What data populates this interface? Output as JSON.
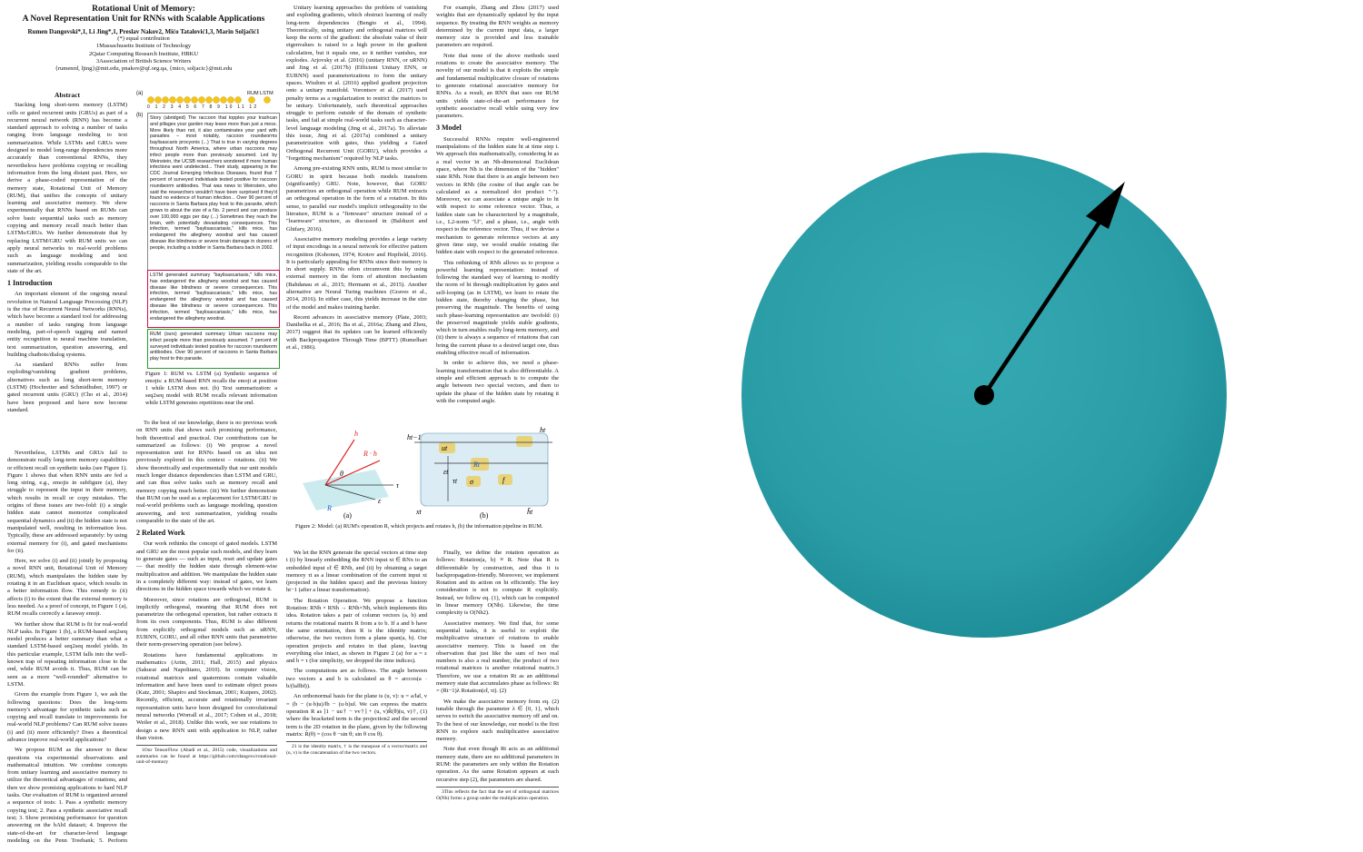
{
  "paper": {
    "title": [
      "Rotational Unit of Memory:",
      "A Novel Representation Unit for RNNs with Scalable Applications"
    ],
    "authors": "Rumen Dangovski*,1, Li Jing*,1, Preslav Nakov2, Mićo Tatalović1,3, Marin Soljačić1",
    "affiliations": [
      "(*) equal contribution",
      "1Massachusetts Institute of Technology",
      "2Qatar Computing Research Institute, HBKU",
      "3Association of British Science Writers",
      "{rumenrd, ljing}@mit.edu, pnakov@qf.org.qa, {mico, soljacic}@mit.edu"
    ],
    "segments": [
      [
        {
          "type": "heading4",
          "text": "Abstract"
        },
        {
          "type": "para",
          "text": "Stacking long short-term memory (LSTM) cells or gated recurrent units (GRUs) as part of a recurrent neural network (RNN) has become a standard approach to solving a number of tasks ranging from language modeling to text summarization. While LSTMs and GRUs were designed to model long-range dependencies more accurately than conventional RNNs, they nevertheless have problems copying or recalling information from the long distant past. Here, we derive a phase-coded representation of the memory state, Rotational Unit of Memory (RUM), that unifies the concepts of unitary learning and associative memory. We show experimentally that RNNs based on RUMs can solve basic sequential tasks such as memory copying and memory recall much better than LSTMs/GRUs. We further demonstrate that by replacing LSTM/GRU with RUM units we can apply neural networks to real-world problems such as language modeling and text summarization, yielding results comparable to the state of the art."
        },
        {
          "type": "heading",
          "text": "1 Introduction"
        },
        {
          "type": "para",
          "text": "An important element of the ongoing neural revolution in Natural Language Processing (NLP) is the rise of Recurrent Neural Networks (RNNs), which have become a standard tool for addressing a number of tasks ranging from language modeling, part-of-speech tagging and named entity recognition to neural machine translation, text summarization, question answering, and building chatbots/dialog systems."
        },
        {
          "type": "para",
          "text": "As standard RNNs suffer from exploding/vanishing gradient problems, alternatives such as long short-term memory (LSTM) (Hochreiter and Schmidhuber, 1997) or gated recurrent units (GRU) (Cho et al., 2014) have been proposed and have now become standard."
        }
      ],
      [
        {
          "type": "para",
          "text": "Nevertheless, LSTMs and GRUs fail to demonstrate really long-term memory capabilities or efficient recall on synthetic tasks (see Figure 1). Figure 1 shows that when RNN units are fed a long string, e.g., emojis in subfigure (a), they struggle to represent the input in their memory, which results in recall or copy mistakes. The origins of these issues are two-fold: (i) a single hidden state cannot memorize complicated sequential dynamics and (ii) the hidden state is not manipulated well, resulting in information loss. Typically, these are addressed separately: by using external memory for (i), and gated mechanisms for (ii)."
        },
        {
          "type": "para",
          "text": "Here, we solve (i) and (ii) jointly by proposing a novel RNN unit, Rotational Unit of Memory (RUM), which manipulates the hidden state by rotating it in an Euclidean space, which results in a better information flow. This remedy to (ii) affects (i) to the extent that the external memory is less needed. As a proof of concept, in Figure 1 (a), RUM recalls correctly a faraway emoji."
        },
        {
          "type": "para",
          "text": "We further show that RUM is fit for real-world NLP tasks. In Figure 1 (b), a RUM-based seq2seq model produces a better summary than what a standard LSTM-based seq2seq model yields. In this particular example, LSTM falls into the well-known trap of repeating information close to the end, while RUM avoids it. Thus, RUM can be seen as a more \"well-rounded\" alternative to LSTM."
        },
        {
          "type": "para",
          "text": "Given the example from Figure 1, we ask the following questions: Does the long-term memory's advantage for synthetic tasks such as copying and recall translate to improvements for real-world NLP problems? Can RUM solve issues (i) and (ii) more efficiently? Does a theoretical advance improve real-world applications?"
        },
        {
          "type": "para",
          "text": "We propose RUM as the answer to these questions via experimental observations and mathematical intuition. We combine concepts from unitary learning and associative memory to utilize the theoretical advantages of rotations, and then we show promising applications to hard NLP tasks. Our evaluation of RUM is organized around a sequence of tests: 1. Pass a synthetic memory copying test; 2. Pass a synthetic associative recall test; 3. Show promising performance for question answering on the bAbI dataset; 4. Improve the state-of-the-art for character-level language modeling on the Penn Treebank; 5. Perform effective seq2seq text summarization, training on the difficult CNN / Daily Mail summarization corpus."
        }
      ],
      [
        {
          "type": "para",
          "text": "To the best of our knowledge, there is no previous work on RNN units that shows such promising performance, both theoretical and practical. Our contributions can be summarized as follows: (i) We propose a novel representation unit for RNNs based on an idea not previously explored in this context – rotations. (ii) We show theoretically and experimentally that our unit models much longer distance dependencies than LSTM and GRU, and can thus solve tasks such as memory recall and memory copying much better. (iii) We further demonstrate that RUM can be used as a replacement for LSTM/GRU in real-world problems such as language modeling, question answering, and text summarization, yielding results comparable to the state of the art."
        },
        {
          "type": "heading",
          "text": "2 Related Work"
        },
        {
          "type": "para",
          "text": "Our work rethinks the concept of gated models. LSTM and GRU are the most popular such models, and they learn to generate gates — such as input, reset and update gates — that modify the hidden state through element-wise multiplication and addition. We manipulate the hidden state in a completely different way: instead of gates, we learn directions in the hidden space towards which we rotate it."
        },
        {
          "type": "para",
          "text": "Moreover, since rotations are orthogonal, RUM is implicitly orthogonal, meaning that RUM does not parametrize the orthogonal operation, but rather extracts it from its own components. Thus, RUM is also different from explicitly orthogonal models such as uRNN, EURNN, GORU, and all other RNN units that parametrize their norm-preserving operation (see below)."
        },
        {
          "type": "para",
          "text": "Rotations have fundamental applications in mathematics (Artin, 2011; Hall, 2015) and physics (Sakurai and Napolitano, 2010). In computer vision, rotational matrices and quaternions contain valuable information and have been used to estimate object poses (Katz, 2001; Shapiro and Stockman, 2001; Kuipers, 2002). Recently, efficient, accurate and rotationally invariant representation units have been designed for convolutional neural networks (Worrall et al., 2017; Cohen et al., 2018; Weiler et al., 2018). Unlike this work, we use rotations to design a new RNN unit with application to NLP, rather than vision."
        },
        {
          "type": "footnote",
          "text": "1Our TensorFlow (Abadi et al., 2015) code, visualizations and summaries can be found at https://github.com/rdangovs/rotational-unit-of-memory"
        }
      ],
      [
        {
          "type": "para",
          "text": "Unitary learning approaches the problem of vanishing and exploding gradients, which obstruct learning of really long-term dependencies (Bengio et al., 1994). Theoretically, using unitary and orthogonal matrices will keep the norm of the gradient: the absolute value of their eigenvalues is raised to a high power in the gradient calculation, but it equals one, so it neither vanishes, nor explodes. Arjovsky et al. (2016) (unitary RNN, or uRNN) and Jing et al. (2017b) (Efficient Unitary ENN, or EURNN) used parameterizations to form the unitary spaces. Wisdom et al. (2016) applied gradient projection onto a unitary manifold. Vorontsov et al. (2017) used penalty terms as a regularization to restrict the matrices to be unitary. Unfortunately, such theoretical approaches struggle to perform outside of the domain of synthetic tasks, and fail at simple real-world tasks such as character-level language modeling (Jing et al., 2017a). To alleviate this issue, Jing et al. (2017a) combined a unitary parametrization with gates, thus yielding a Gated Orthogonal Recurrent Unit (GORU), which provides a \"forgetting mechanism\" required by NLP tasks."
        },
        {
          "type": "para",
          "text": "Among pre-existing RNN units, RUM is most similar to GORU in spirit because both models transform (significantly) GRU. Note, however, that GORU parametrizes an orthogonal operation while RUM extracts an orthogonal operation in the form of a rotation. In this sense, to parallel our model's implicit orthogonality to the literature, RUM is a \"firmware\" structure instead of a \"learnware\" structure, as discussed in (Balduzzi and Ghifary, 2016)."
        },
        {
          "type": "para",
          "text": "Associative memory modeling provides a large variety of input encodings in a neural network for effective pattern recognition (Kohonen, 1974; Krotov and Hopfield, 2016). It is particularly appealing for RNNs since their memory is in short supply. RNNs often circumvent this by using external memory in the form of attention mechanism (Bahdanau et al., 2015; Hermann et al., 2015). Another alternative are Neural Turing machines (Graves et al., 2014, 2016). In either case, this yields increase in the size of the model and makes training harder."
        },
        {
          "type": "para",
          "text": "Recent advances in associative memory (Plate, 2003; Danihelka et al., 2016; Ba et al., 2016a; Zhang and Zhou, 2017) suggest that its updates can be learned efficiently with Backpropagation Through Time (BPTT) (Rumelhart et al., 1986)."
        }
      ],
      [
        {
          "type": "para",
          "text": "For example, Zhang and Zhou (2017) used weights that are dynamically updated by the input sequence. By treating the RNN weights as memory determined by the current input data, a larger memory size is provided and less trainable parameters are required."
        },
        {
          "type": "para",
          "text": "Note that none of the above methods used rotations to create the associative memory. The novelty of our model is that it exploits the simple and fundamental multiplicative closure of rotations to generate rotational associative memory for RNNs. As a result, an RNN that uses our RUM units yields state-of-the-art performance for synthetic associative recall while using very few parameters."
        },
        {
          "type": "heading",
          "text": "3 Model"
        },
        {
          "type": "para",
          "text": "Successful RNNs require well-engineered manipulations of the hidden state ht at time step t. We approach this mathematically, considering ht as a real vector in an Nh-dimensional Euclidean space, where Nh is the dimension of the \"hidden\" state RNh. Note that there is an angle between two vectors in RNh (the cosine of that angle can be calculated as a normalized dot product \"·\"). Moreover, we can associate a unique angle to ht with respect to some reference vector. Thus, a hidden state can be characterized by a magnitude, i.e., L2-norm \"‖.‖\", and a phase, i.e., angle with respect to the reference vector. Thus, if we devise a mechanism to generate reference vectors at any given time step, we would enable rotating the hidden state with respect to the generated reference."
        },
        {
          "type": "para",
          "text": "This rethinking of RNh allows us to propose a powerful learning representation: instead of following the standard way of learning to modify the norm of ht through multiplication by gates and self-looping (as in LSTM), we learn to rotate the hidden state, thereby changing the phase, but preserving the magnitude. The benefits of using such phase-learning representation are twofold: (i) the preserved magnitude yields stable gradients, which in turn enables really long-term memory, and (ii) there is always a sequence of rotations that can bring the current phase to a desired target one, thus enabling effective recall of information."
        },
        {
          "type": "para",
          "text": "In order to achieve this, we need a phase-learning transformation that is also differentiable. A simple and efficient approach is to compute the angle between two special vectors, and then to update the phase of the hidden state by rotating it with the computed angle."
        }
      ],
      [
        {
          "type": "para",
          "text": "We let the RNN generate the special vectors at time step t (i) by linearly embedding the RNN input xt ∈ RNx to an embedded input ε̃t ∈ RNh, and (ii) by obtaining a target memory τt as a linear combination of the current input xt (projected in the hidden space) and the previous history ht−1 (after a linear transformation)."
        },
        {
          "type": "para",
          "text": "The Rotation Operation. We propose a function Rotation: RNh × RNh → RNh×Nh, which implements this idea. Rotation takes a pair of column vectors (a, b) and returns the rotational matrix R from a to b. If a and b have the same orientation, then R is the identity matrix; otherwise, the two vectors form a plane span(a, b). Our operation projects and rotates in that plane, leaving everything else intact, as shown in Figure 2 (a) for a = ε and b = τ (for simplicity, we dropped the time indices)."
        },
        {
          "type": "para",
          "text": "The computations are as follows. The angle between two vectors a and b is calculated as θ = arccos(a · b/(‖a‖‖b‖))."
        },
        {
          "type": "para",
          "text": "An orthonormal basis for the plane is (u, v): u = a/‖a‖, v = (b − (u·b)u)/‖b − (u·b)u‖. We can express the matrix operation R as [1 − uu† − vv†] + (u, v)R̃(θ)(u, v)†, (1) where the bracketed term is the projection2 and the second term is the 2D rotation in the plane, given by the following matrix: R̃(θ) = (cos θ −sin θ; sin θ cos θ)."
        },
        {
          "type": "footnote",
          "text": "21 is the identity matrix, † is the transpose of a vector/matrix and (u, v) is the concatenation of the two vectors."
        }
      ],
      [
        {
          "type": "para",
          "text": "Finally, we define the rotation operation as follows: Rotation(a, b) ≡ R. Note that R is differentiable by construction, and thus it is backpropagation-friendly. Moreover, we implement Rotation and its action on ht efficiently. The key consideration is not to compute R explicitly. Instead, we follow eq. (1), which can be computed in linear memory O(Nh). Likewise, the time complexity is O(Nh2)."
        },
        {
          "type": "para",
          "text": "Associative memory. We find that, for some sequential tasks, it is useful to exploit the multiplicative structure of rotations to enable associative memory. This is based on the observation that just like the sum of two real numbers is also a real number, the product of two rotational matrices is another rotational matrix.3 Therefore, we use a rotation Rt as an additional memory state that accumulates phase as follows: Rt = (Rt−1)λ Rotation(ε̃t, τt). (2)"
        },
        {
          "type": "para",
          "text": "We make the associative memory from eq. (2) tunable through the parameter λ ∈ {0, 1}, which serves to switch the associative memory off and on. To the best of our knowledge, our model is the first RNN to explore such multiplicative associative memory."
        },
        {
          "type": "para",
          "text": "Note that even though Rt acts as an additional memory state, there are no additional parameters in RUM: the parameters are only within the Rotation operation. As the same Rotation appears at each recursive step (2), the parameters are shared."
        },
        {
          "type": "footnote",
          "text": "3This reflects the fact that the set of orthogonal matrices O(Nh) forms a group under the multiplication operation."
        }
      ]
    ],
    "figure1": {
      "panel_a": "(a)",
      "panel_b": "(b)",
      "models": "RUM LSTM",
      "indices": "0 1 2 3 4 5 6 7 8 9 10 11 12",
      "story": "Story (abridged) The raccoon that topples your trashcan and pillages your garden may leave more than just a mess. More likely than not, it also contaminates your yard with parasites – most notably, raccoon roundworms baylisascaris procyonis (...) That is true in varying degrees throughout North America, where urban raccoons may infect people more than previously assumed. Led by Weinstein, the UCSB researchers wondered if more human infections went undetected... Their study, appearing in the CDC Journal Emerging Infectious Diseases, found that 7 percent of surveyed individuals tested positive for raccoon roundworm antibodies. That was news to Weinstein, who said the researchers wouldn't have been surprised if they'd found no evidence of human infection... Over 90 percent of raccoons in Santa Barbara play host to this parasite, which grows to about the size of a No. 2 pencil and can produce over 100,000 eggs per day (...) Sometimes they reach the brain, with potentially devastating consequences. This infection, termed \"baylisascariasis,\" kills mice, has endangered the allegheny woodrat and has caused disease like blindness or severe brain damage in dozens of people, including a toddler in Santa Barbara back in 2002.",
      "lstm": "LSTM generated summary \"baylisascariasis,\" kills mice, has endangered the allegheny woodrat and has caused disease like blindness or severe consequences. This infection, termed \"baylisascariasis,\" kills mice, has endangered the allegheny woodrat and has caused disease like blindness or severe consequences. This infection, termed \"baylisascariasis,\" kills mice, has endangered the allegheny woodrat.",
      "rum": "RUM (ours) generated summary Urban raccoons may infect people more than previously assumed. 7 percent of surveyed individuals tested positive for raccoon roundworm antibodies. Over 90 percent of raccoons in Santa Barbara play host to this parasite.",
      "caption": "Figure 1: RUM vs. LSTM (a) Synthetic sequence of emojis: a RUM-based RNN recalls the emoji at position 1 while LSTM does not. (b) Text summarization: a seq2seq model with RUM recalls relevant information while LSTM generates repetitions near the end."
    },
    "figure2": {
      "labels_a": [
        "h",
        "R · h",
        "R",
        "τ",
        "ε",
        "θ",
        "(a)"
      ],
      "labels_b": [
        "ht−1",
        "xt",
        "ut",
        "Rt",
        "σ",
        "f",
        "ht",
        "h̃t",
        "εt",
        "τt",
        "(b)"
      ],
      "caption": "Figure 2: Model: (a) RUM's operation R, which projects and rotates h, (b) the information pipeline in RUM."
    }
  }
}
